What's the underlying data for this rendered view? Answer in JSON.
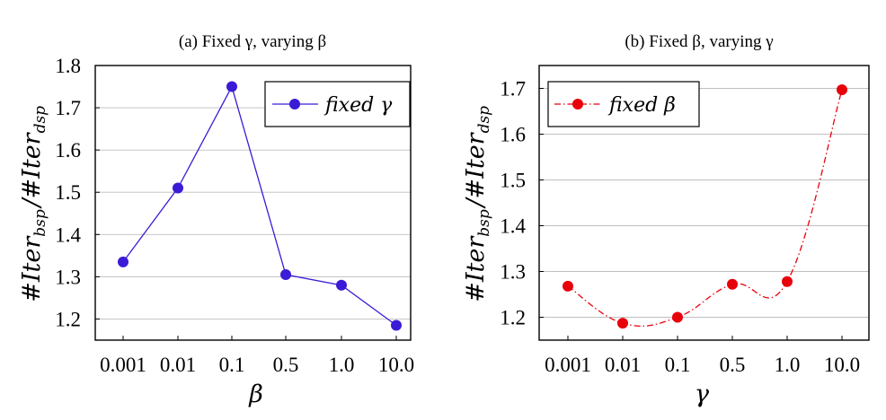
{
  "chart_data": [
    {
      "type": "line",
      "title": "(a) Fixed γ, varying β",
      "xlabel": "β",
      "ylabel": "#Iter_bsp/#Iter_dsp",
      "categories": [
        "0.001",
        "0.01",
        "0.1",
        "0.5",
        "1.0",
        "10.0"
      ],
      "x_tick_labels": [
        "0.001",
        "0.01",
        "0.1",
        "0.5",
        "1.0",
        "10.0"
      ],
      "ylim": [
        1.15,
        1.8
      ],
      "y_ticks": [
        1.2,
        1.3,
        1.4,
        1.5,
        1.6,
        1.7,
        1.8
      ],
      "y_tick_labels": [
        "1.2",
        "1.3",
        "1.4",
        "1.5",
        "1.6",
        "1.7",
        "1.8"
      ],
      "grid": "horizontal",
      "legend_position": "top-right",
      "series": [
        {
          "name": "fixed γ",
          "values": [
            1.335,
            1.51,
            1.75,
            1.305,
            1.28,
            1.185
          ],
          "color": "#3c1bd6",
          "line_style": "solid",
          "marker": "circle"
        }
      ]
    },
    {
      "type": "line",
      "title": "(b) Fixed β, varying γ",
      "xlabel": "γ",
      "ylabel": "#Iter_bsp/#Iter_dsp",
      "categories": [
        "0.001",
        "0.01",
        "0.1",
        "0.5",
        "1.0",
        "10.0"
      ],
      "x_tick_labels": [
        "0.001",
        "0.01",
        "0.1",
        "0.5",
        "1.0",
        "10.0"
      ],
      "ylim": [
        1.15,
        1.75
      ],
      "y_ticks": [
        1.2,
        1.3,
        1.4,
        1.5,
        1.6,
        1.7
      ],
      "y_tick_labels": [
        "1.2",
        "1.3",
        "1.4",
        "1.5",
        "1.6",
        "1.7"
      ],
      "grid": "horizontal",
      "legend_position": "top-left",
      "series": [
        {
          "name": "fixed β",
          "values": [
            1.268,
            1.187,
            1.2,
            1.272,
            1.278,
            1.697
          ],
          "color": "#e8000b",
          "line_style": "dash-dot",
          "marker": "circle"
        }
      ]
    }
  ]
}
